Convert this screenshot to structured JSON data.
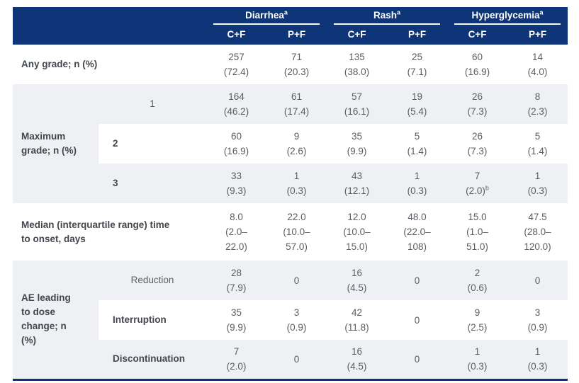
{
  "colors": {
    "header_bg": "#0d3577",
    "header_text": "#ffffff",
    "row_alt_bg": "#eef0f4",
    "label_text": "#42474e",
    "data_text": "#595d63"
  },
  "header": {
    "groups": [
      {
        "label": "Diarrhea",
        "sup": "a"
      },
      {
        "label": "Rash",
        "sup": "a"
      },
      {
        "label": "Hyperglycemia",
        "sup": "a"
      }
    ],
    "subcols": [
      "C+F",
      "P+F",
      "C+F",
      "P+F",
      "C+F",
      "P+F"
    ]
  },
  "body": {
    "rows": [
      {
        "bg": "white",
        "label": "Any grade; n (%)",
        "cells": [
          [
            "257",
            "(72.4)"
          ],
          [
            "71",
            "(20.3)"
          ],
          [
            "135",
            "(38.0)"
          ],
          [
            "25",
            "(7.1)"
          ],
          [
            "60",
            "(16.9)"
          ],
          [
            "14",
            "(4.0)"
          ]
        ]
      },
      {
        "bg": "gray",
        "section": {
          "text": "Maximum grade; n (%)",
          "rowspan": 3
        },
        "sublabel": {
          "text": "1",
          "bold": false,
          "align": "center"
        },
        "cells": [
          [
            "164",
            "(46.2)"
          ],
          [
            "61",
            "(17.4)"
          ],
          [
            "57",
            "(16.1)"
          ],
          [
            "19",
            "(5.4)"
          ],
          [
            "26",
            "(7.3)"
          ],
          [
            "8",
            "(2.3)"
          ]
        ]
      },
      {
        "bg": "white",
        "sublabel": {
          "text": "2",
          "bold": true,
          "align": "left"
        },
        "cells": [
          [
            "60",
            "(16.9)"
          ],
          [
            "9",
            "(2.6)"
          ],
          [
            "35",
            "(9.9)"
          ],
          [
            "5",
            "(1.4)"
          ],
          [
            "26",
            "(7.3)"
          ],
          [
            "5",
            "(1.4)"
          ]
        ]
      },
      {
        "bg": "gray",
        "sublabel": {
          "text": "3",
          "bold": true,
          "align": "left"
        },
        "cells": [
          [
            "33",
            "(9.3)"
          ],
          [
            "1",
            "(0.3)"
          ],
          [
            "43",
            "(12.1)"
          ],
          [
            "1",
            "(0.3)"
          ],
          {
            "lines": [
              "7",
              "(2.0)"
            ],
            "sup": "b"
          },
          [
            "1",
            "(0.3)"
          ]
        ]
      },
      {
        "bg": "white",
        "tall": true,
        "label": "Median (interquartile range) time to onset, days",
        "cells": [
          [
            "8.0",
            "(2.0–",
            "22.0)"
          ],
          [
            "22.0",
            "(10.0–",
            "57.0)"
          ],
          [
            "12.0",
            "(10.0–",
            "15.0)"
          ],
          [
            "48.0",
            "(22.0–",
            "108)"
          ],
          [
            "15.0",
            "(1.0–",
            "51.0)"
          ],
          [
            "47.5",
            "(28.0–",
            "120.0)"
          ]
        ]
      },
      {
        "bg": "gray",
        "section": {
          "text": "AE leading to dose change; n (%)",
          "rowspan": 3
        },
        "sublabel": {
          "text": "Reduction",
          "bold": false,
          "align": "center"
        },
        "cells": [
          [
            "28",
            "(7.9)"
          ],
          [
            "0"
          ],
          [
            "16",
            "(4.5)"
          ],
          [
            "0"
          ],
          [
            "2",
            "(0.6)"
          ],
          [
            "0"
          ]
        ]
      },
      {
        "bg": "white",
        "sublabel": {
          "text": "Interruption",
          "bold": true,
          "align": "left"
        },
        "cells": [
          [
            "35",
            "(9.9)"
          ],
          [
            "3",
            "(0.9)"
          ],
          [
            "42",
            "(11.8)"
          ],
          [
            "0"
          ],
          [
            "9",
            "(2.5)"
          ],
          [
            "3",
            "(0.9)"
          ]
        ]
      },
      {
        "bg": "gray",
        "sublabel": {
          "text": "Discontinuation",
          "bold": true,
          "align": "left"
        },
        "cells": [
          [
            "7",
            "(2.0)"
          ],
          [
            "0"
          ],
          [
            "16",
            "(4.5)"
          ],
          [
            "0"
          ],
          [
            "1",
            "(0.3)"
          ],
          [
            "1",
            "(0.3)"
          ]
        ]
      }
    ]
  }
}
